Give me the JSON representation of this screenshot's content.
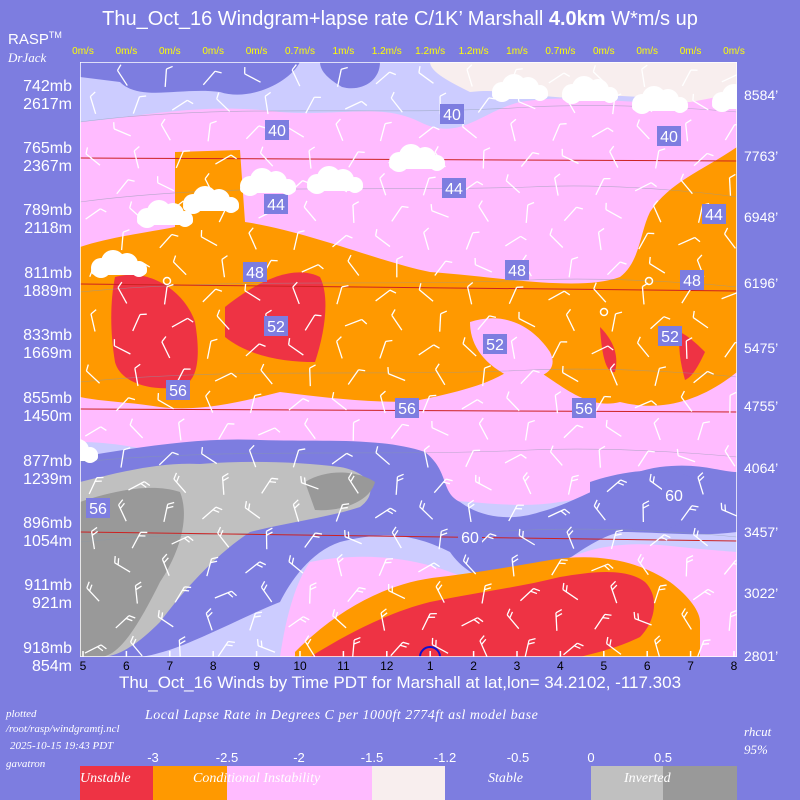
{
  "header": {
    "title_main": "Thu_Oct_16 Windgram+lapse rate C/1K’  Marshall",
    "title_height": "4.0km",
    "title_units": "W*m/s up",
    "brand": "RASP",
    "brand_tm": "TM",
    "brand_sub": "DrJack"
  },
  "colors": {
    "unstable": "#ee3344",
    "conditional": "#ff9900",
    "pink": "#ffbbff",
    "cream": "#f8eeee",
    "lavender": "#ccccff",
    "stable": "#7d7de0",
    "inverted_light": "#c0c0c0",
    "inverted_dark": "#999999"
  },
  "left_axis": [
    {
      "mb": "742mb",
      "m": "2617m"
    },
    {
      "mb": "765mb",
      "m": "2367m"
    },
    {
      "mb": "789mb",
      "m": "2118m"
    },
    {
      "mb": "811mb",
      "m": "1889m"
    },
    {
      "mb": "833mb",
      "m": "1669m"
    },
    {
      "mb": "855mb",
      "m": "1450m"
    },
    {
      "mb": "877mb",
      "m": "1239m"
    },
    {
      "mb": "896mb",
      "m": "1054m"
    },
    {
      "mb": "911mb",
      "m": "921m"
    },
    {
      "mb": "918mb",
      "m": "854m"
    }
  ],
  "right_axis": [
    "8584’",
    "7763’",
    "6948’",
    "6196’",
    "5475’",
    "4755’",
    "4064’",
    "3457’",
    "3022’",
    "2801’"
  ],
  "top_w": [
    "0m/s",
    "0m/s",
    "0m/s",
    "0m/s",
    "0m/s",
    "0.7m/s",
    "1m/s",
    "1.2m/s",
    "1.2m/s",
    "1.2m/s",
    "1m/s",
    "0.7m/s",
    "0m/s",
    "0m/s",
    "0m/s",
    "0m/s"
  ],
  "chart_data": {
    "type": "heatmap",
    "title": "Thu_Oct_16 Windgram+lapse rate C/1K’  Marshall 4.0km  W*m/s up",
    "x_ticks": [
      "5",
      "6",
      "7",
      "8",
      "9",
      "10",
      "11",
      "12",
      "1",
      "2",
      "3",
      "4",
      "5",
      "6",
      "7",
      "8"
    ],
    "xlabel": "Thu_Oct_16 Winds by Time PDT for Marshall at lat,lon= 34.2102, -117.303",
    "location": {
      "lat": 34.2102,
      "lon": -117.303
    },
    "contour_labels": [
      "40",
      "40",
      "40",
      "44",
      "44",
      "44",
      "48",
      "48",
      "48",
      "52",
      "52",
      "52",
      "56",
      "56",
      "56",
      "56",
      "60",
      "60"
    ],
    "legend": {
      "title": "Local Lapse Rate in Degrees C per 1000ft  2774ft asl model base",
      "values": [
        "-3",
        "-2.5",
        "-2",
        "-1.5",
        "-1.2",
        "-0.5",
        "0",
        "0.5"
      ],
      "categories": [
        "Unstable",
        "Conditional Instability",
        "Stable",
        "Inverted"
      ]
    }
  },
  "footer": {
    "plotted": "plotted",
    "path": "/root/rasp/windgramtj.ncl",
    "date": "2025-10-15 19:43 PDT",
    "user": "gavatron",
    "rhcut": "rhcut",
    "rhcut_val": "95%"
  }
}
